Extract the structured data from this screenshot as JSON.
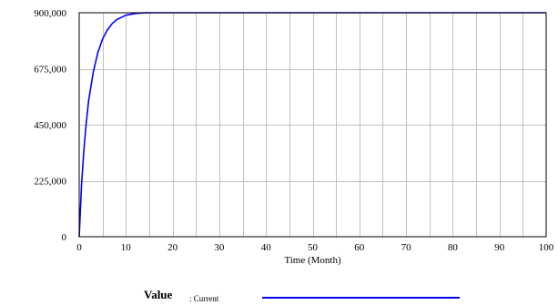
{
  "chart_data": {
    "type": "line",
    "xlabel": "Time (Month)",
    "ylabel": "",
    "xlim": [
      0,
      100
    ],
    "ylim": [
      0,
      900000
    ],
    "x_ticks": [
      0,
      10,
      20,
      30,
      40,
      50,
      60,
      70,
      80,
      90,
      100
    ],
    "y_ticks": [
      0,
      225000,
      450000,
      675000,
      900000
    ],
    "x_tick_labels": [
      "0",
      "10",
      "20",
      "30",
      "40",
      "50",
      "60",
      "70",
      "80",
      "90",
      "100"
    ],
    "y_tick_labels": [
      "0",
      "225,000",
      "450,000",
      "675,000",
      "900,000"
    ],
    "grid": true,
    "legend": {
      "title": "Value",
      "position": "bottom"
    },
    "series": [
      {
        "name": ": Current",
        "color": "#0000ff",
        "x": [
          0,
          0.5,
          1,
          1.5,
          2,
          3,
          4,
          5,
          6,
          7,
          8,
          10,
          12,
          14,
          16,
          18,
          20,
          25,
          30,
          40,
          50,
          60,
          70,
          80,
          90,
          100
        ],
        "y": [
          0,
          210000,
          345000,
          455000,
          545000,
          660000,
          740000,
          795000,
          830000,
          855000,
          872000,
          890000,
          897000,
          899500,
          900000,
          900000,
          900000,
          900000,
          900000,
          900000,
          900000,
          900000,
          900000,
          900000,
          900000,
          900000
        ]
      }
    ]
  }
}
